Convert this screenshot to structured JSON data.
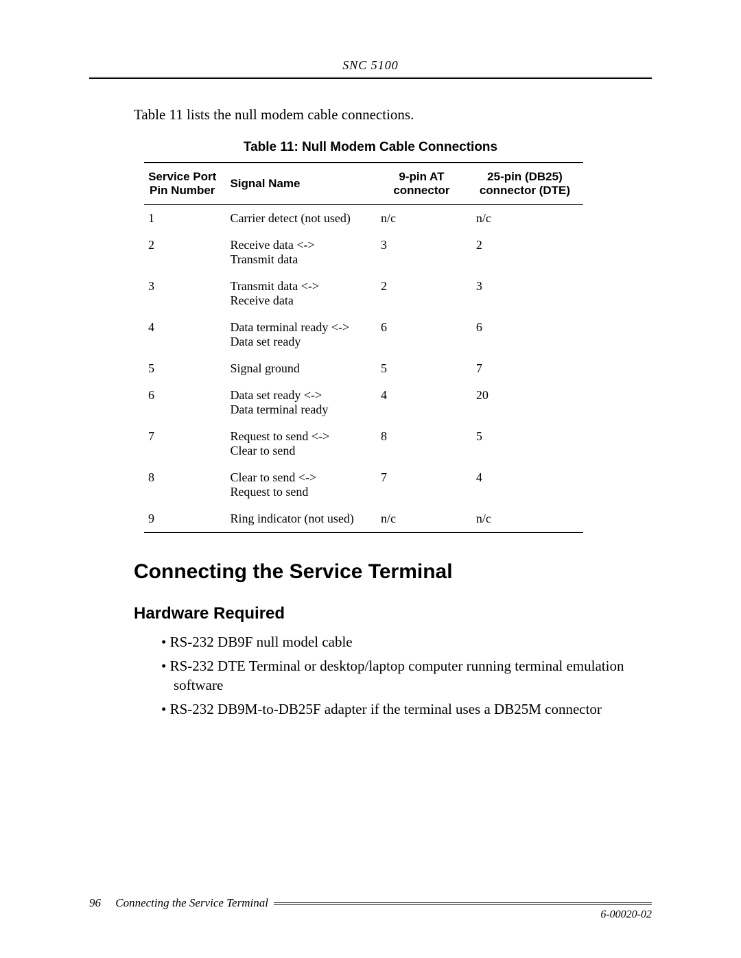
{
  "header": {
    "product": "SNC 5100"
  },
  "intro_text": "Table 11 lists the null modem cable connections.",
  "table": {
    "caption": "Table 11: Null Modem Cable Connections",
    "columns": [
      "Service Port Pin Number",
      "Signal Name",
      "9-pin AT connector",
      "25-pin (DB25) connector (DTE)"
    ],
    "rows": [
      {
        "pin": "1",
        "signal": "Carrier detect (not used)",
        "p9": "n/c",
        "p25": "n/c"
      },
      {
        "pin": "2",
        "signal": "Receive data <->\nTransmit data",
        "p9": "3",
        "p25": "2"
      },
      {
        "pin": "3",
        "signal": "Transmit data <->\nReceive data",
        "p9": "2",
        "p25": "3"
      },
      {
        "pin": "4",
        "signal": "Data terminal ready <->\nData set ready",
        "p9": "6",
        "p25": "6"
      },
      {
        "pin": "5",
        "signal": "Signal ground",
        "p9": "5",
        "p25": "7"
      },
      {
        "pin": "6",
        "signal": "Data set ready <->\nData terminal ready",
        "p9": "4",
        "p25": "20"
      },
      {
        "pin": "7",
        "signal": "Request to send <->\nClear to send",
        "p9": "8",
        "p25": "5"
      },
      {
        "pin": "8",
        "signal": "Clear to send <->\nRequest to send",
        "p9": "7",
        "p25": "4"
      },
      {
        "pin": "9",
        "signal": "Ring indicator (not used)",
        "p9": "n/c",
        "p25": "n/c"
      }
    ]
  },
  "h1": "Connecting the Service Terminal",
  "h2": "Hardware Required",
  "hardware_list": [
    "RS-232 DB9F null model cable",
    "RS-232 DTE Terminal or desktop/laptop computer running terminal emulation software",
    "RS-232 DB9M-to-DB25F adapter if the terminal uses a DB25M connector"
  ],
  "footer": {
    "page_number": "96",
    "section": "Connecting the Service Terminal",
    "doc_number": "6-00020-02"
  }
}
